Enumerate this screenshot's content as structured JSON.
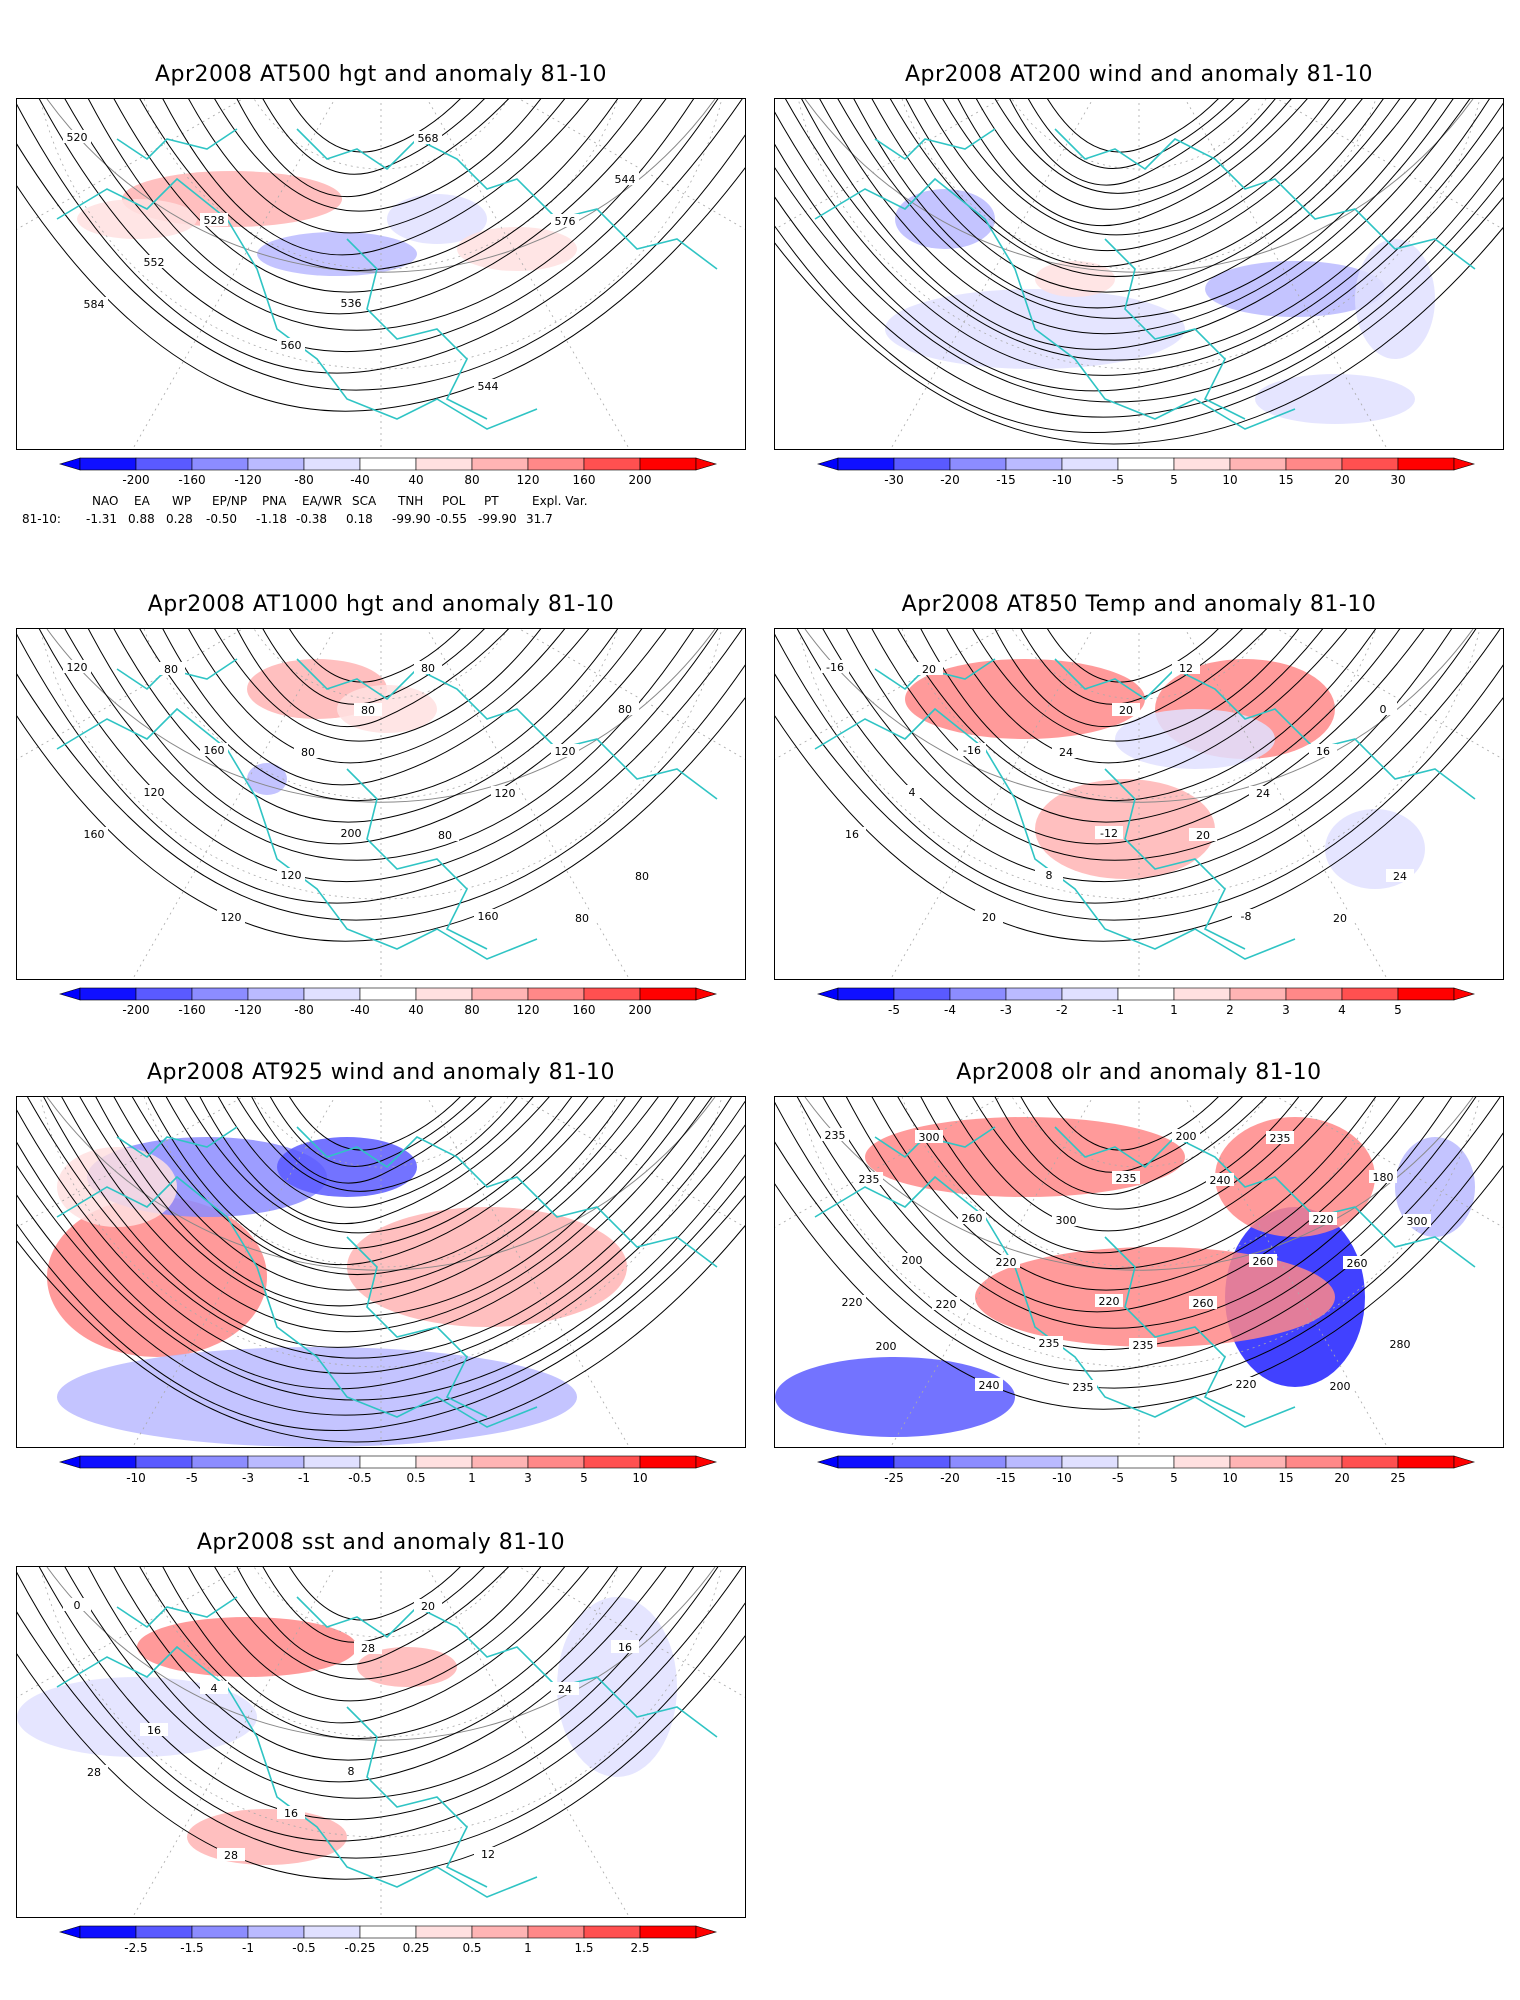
{
  "colors": {
    "coast": "#2fc4c4",
    "contour": "#000000",
    "neg": [
      "#2020ff",
      "#5a5aff",
      "#8c8cff",
      "#babaff",
      "#e0e0ff"
    ],
    "pos": [
      "#ffe0e0",
      "#ffb4b4",
      "#ff8888",
      "#ff5050",
      "#ff1e1e"
    ]
  },
  "panels": [
    {
      "id": "p500",
      "title": "Apr2008 AT500 hgt and anomaly 81-10",
      "field_type": "contours",
      "contour_labels": [
        "520",
        "528",
        "536",
        "544",
        "544",
        "552",
        "560",
        "568",
        "576",
        "584"
      ],
      "colorbar": [
        "-200",
        "-160",
        "-120",
        "-80",
        "-40",
        "40",
        "80",
        "120",
        "160",
        "200"
      ]
    },
    {
      "id": "p200",
      "title": "Apr2008 AT200 wind and anomaly 81-10",
      "field_type": "streamlines",
      "contour_labels": [],
      "colorbar": [
        "-30",
        "-20",
        "-15",
        "-10",
        "-5",
        "5",
        "10",
        "15",
        "20",
        "30"
      ]
    },
    {
      "id": "p1000",
      "title": "Apr2008 AT1000 hgt and anomaly 81-10",
      "field_type": "contours",
      "contour_labels": [
        "120",
        "160",
        "200",
        "160",
        "80",
        "120",
        "120",
        "80",
        "120",
        "160",
        "120",
        "80",
        "120",
        "80",
        "80",
        "80",
        "80",
        "80"
      ],
      "colorbar": [
        "-200",
        "-160",
        "-120",
        "-80",
        "-40",
        "40",
        "80",
        "120",
        "160",
        "200"
      ]
    },
    {
      "id": "p850",
      "title": "Apr2008 AT850 Temp and anomaly 81-10",
      "field_type": "contours",
      "contour_labels": [
        "-16",
        "-16",
        "-12",
        "-8",
        "0",
        "4",
        "8",
        "12",
        "16",
        "16",
        "20",
        "20",
        "24",
        "24",
        "20",
        "24",
        "20",
        "20"
      ],
      "colorbar": [
        "-5",
        "-4",
        "-3",
        "-2",
        "-1",
        "1",
        "2",
        "3",
        "4",
        "5"
      ]
    },
    {
      "id": "p925",
      "title": "Apr2008 AT925 wind and anomaly 81-10",
      "field_type": "streamlines",
      "contour_labels": [],
      "colorbar": [
        "-10",
        "-5",
        "-3",
        "-1",
        "-0.5",
        "0.5",
        "1",
        "3",
        "5",
        "10"
      ]
    },
    {
      "id": "polr",
      "title": "Apr2008 olr and anomaly 81-10",
      "field_type": "contours",
      "contour_labels": [
        "235",
        "260",
        "220",
        "220",
        "180",
        "200",
        "235",
        "200",
        "220",
        "220",
        "240",
        "235",
        "260",
        "280",
        "300",
        "300",
        "260",
        "200",
        "235",
        "220",
        "235",
        "235",
        "300",
        "220",
        "235",
        "240",
        "260",
        "200"
      ],
      "colorbar": [
        "-25",
        "-20",
        "-15",
        "-10",
        "-5",
        "5",
        "10",
        "15",
        "20",
        "25"
      ]
    },
    {
      "id": "psst",
      "title": "Apr2008 sst and anomaly 81-10",
      "field_type": "contours",
      "contour_labels": [
        "0",
        "4",
        "8",
        "12",
        "16",
        "16",
        "16",
        "20",
        "24",
        "28",
        "28",
        "28"
      ],
      "colorbar": [
        "-2.5",
        "-1.5",
        "-1",
        "-0.5",
        "-0.25",
        "0.25",
        "0.5",
        "1",
        "1.5",
        "2.5"
      ]
    }
  ],
  "teleconnections": {
    "headers": [
      "NAO",
      "EA",
      "WP",
      "EP/NP",
      "PNA",
      "EA/WR",
      "SCA",
      "TNH",
      "POL",
      "PT",
      "Expl. Var."
    ],
    "row_label": "81-10:",
    "values": [
      "-1.31",
      "0.88",
      "0.28",
      "-0.50",
      "-1.18",
      "-0.38",
      "0.18",
      "-99.90",
      "-0.55",
      "-99.90",
      "31.7"
    ]
  }
}
